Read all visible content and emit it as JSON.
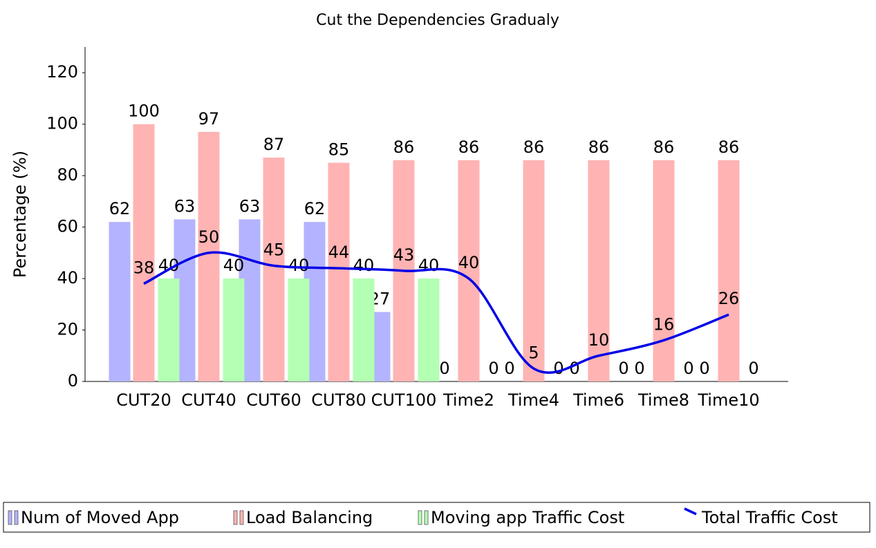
{
  "chart_data": {
    "type": "bar",
    "title": "Cut the Dependencies Gradualy",
    "y_label": "Percentage (%)",
    "categories": [
      "CUT20",
      "CUT40",
      "CUT60",
      "CUT80",
      "CUT100",
      "Time2",
      "Time4",
      "Time6",
      "Time8",
      "Time10"
    ],
    "series": [
      {
        "name": "Num of Moved App",
        "color": "#b3b3ff",
        "kind": "bar",
        "values": [
          62,
          63,
          63,
          62,
          27,
          0,
          0,
          0,
          0,
          0
        ]
      },
      {
        "name": "Load Balancing",
        "color": "#ffb3b3",
        "kind": "bar",
        "values": [
          100,
          97,
          87,
          85,
          86,
          86,
          86,
          86,
          86,
          86
        ]
      },
      {
        "name": "Moving app Traffic Cost",
        "color": "#b3ffb3",
        "kind": "bar",
        "values": [
          40,
          40,
          40,
          40,
          40,
          0,
          0,
          0,
          0,
          0
        ]
      },
      {
        "name": "Total Traffic Cost",
        "color": "#0000e6",
        "kind": "line",
        "values": [
          38,
          50,
          45,
          44,
          43,
          40,
          5,
          10,
          16,
          26
        ]
      }
    ],
    "ylim": [
      0,
      130
    ],
    "yticks": [
      0,
      20,
      40,
      60,
      80,
      100,
      120
    ],
    "grid": false,
    "legend": "bottom"
  }
}
